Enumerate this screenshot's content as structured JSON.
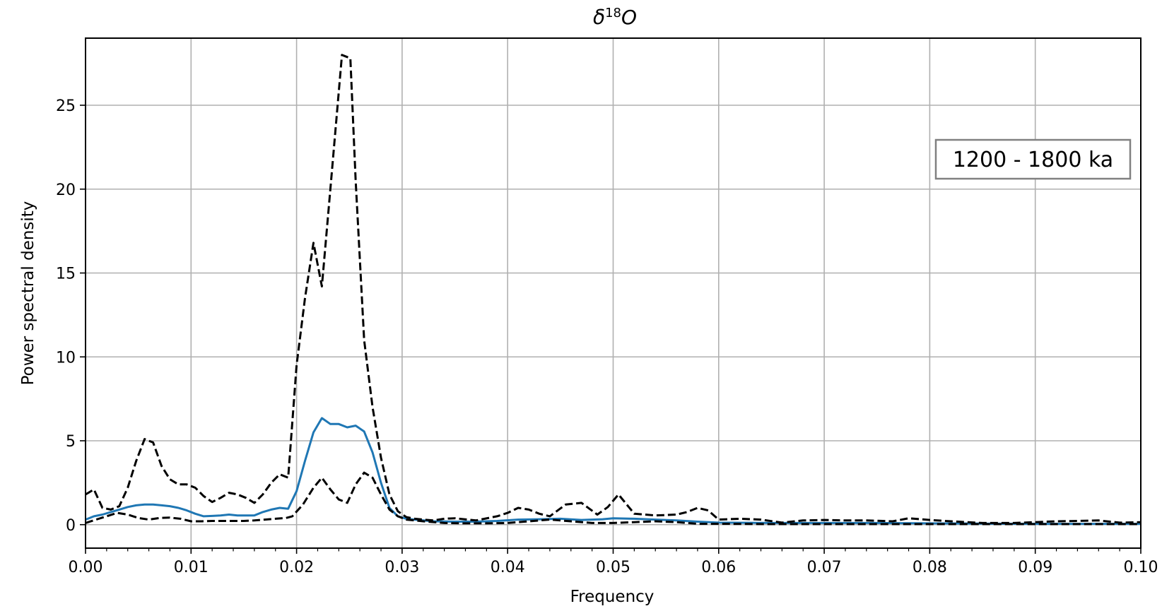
{
  "chart_data": {
    "type": "line",
    "title": {
      "base": "δ",
      "sup": "18",
      "tail": "O"
    },
    "xlabel": "Frequency",
    "ylabel": "Power spectral density",
    "xlim": [
      0,
      0.1
    ],
    "ylim": [
      -1.4,
      29.0
    ],
    "xticks": [
      0.0,
      0.01,
      0.02,
      0.03,
      0.04,
      0.05,
      0.06,
      0.07,
      0.08,
      0.09,
      0.1
    ],
    "xtick_labels": [
      "0.00",
      "0.01",
      "0.02",
      "0.03",
      "0.04",
      "0.05",
      "0.06",
      "0.07",
      "0.08",
      "0.09",
      "0.10"
    ],
    "yticks": [
      0,
      5,
      10,
      15,
      20,
      25
    ],
    "ytick_labels": [
      "0",
      "5",
      "10",
      "15",
      "20",
      "25"
    ],
    "grid": true,
    "annotation": "1200 - 1800 ka",
    "annotation_position": "right",
    "series": [
      {
        "style": "solid",
        "color": "#1f77b4",
        "x": [
          0,
          0.0008,
          0.0016,
          0.0024,
          0.0032,
          0.004,
          0.0048,
          0.0056,
          0.0064,
          0.0072,
          0.008,
          0.0088,
          0.0096,
          0.0104,
          0.0112,
          0.012,
          0.0128,
          0.0136,
          0.0144,
          0.0152,
          0.016,
          0.0168,
          0.0176,
          0.0184,
          0.0192,
          0.02,
          0.0208,
          0.0216,
          0.0224,
          0.0232,
          0.024,
          0.0248,
          0.0256,
          0.0264,
          0.0272,
          0.028,
          0.0288,
          0.0296,
          0.0304,
          0.0312,
          0.032,
          0.033,
          0.035,
          0.037,
          0.039,
          0.041,
          0.043,
          0.045,
          0.047,
          0.049,
          0.05,
          0.052,
          0.054,
          0.056,
          0.058,
          0.06,
          0.065,
          0.07,
          0.075,
          0.08,
          0.085,
          0.09,
          0.095,
          0.1
        ],
        "y": [
          0.3,
          0.5,
          0.6,
          0.75,
          0.9,
          1.05,
          1.15,
          1.2,
          1.2,
          1.15,
          1.1,
          1.0,
          0.85,
          0.65,
          0.5,
          0.52,
          0.55,
          0.6,
          0.55,
          0.55,
          0.55,
          0.75,
          0.9,
          1.0,
          0.95,
          2.0,
          3.8,
          5.5,
          6.35,
          6.0,
          6.0,
          5.8,
          5.9,
          5.55,
          4.3,
          2.5,
          1.0,
          0.5,
          0.35,
          0.3,
          0.25,
          0.2,
          0.18,
          0.18,
          0.22,
          0.3,
          0.32,
          0.35,
          0.28,
          0.32,
          0.38,
          0.35,
          0.3,
          0.25,
          0.18,
          0.12,
          0.1,
          0.1,
          0.1,
          0.08,
          0.06,
          0.05,
          0.05,
          0.05
        ]
      },
      {
        "style": "dashed",
        "color": "#000000",
        "x": [
          0,
          0.0008,
          0.0016,
          0.0024,
          0.0032,
          0.004,
          0.0048,
          0.0056,
          0.0064,
          0.0072,
          0.008,
          0.0088,
          0.0096,
          0.0104,
          0.0112,
          0.012,
          0.0128,
          0.0136,
          0.0144,
          0.0152,
          0.016,
          0.0168,
          0.0176,
          0.0184,
          0.0192,
          0.02,
          0.0208,
          0.0216,
          0.0224,
          0.0232,
          0.0243,
          0.0251,
          0.0256,
          0.0264,
          0.0272,
          0.028,
          0.0288,
          0.0296,
          0.0304,
          0.0312,
          0.032,
          0.033,
          0.034,
          0.035,
          0.037,
          0.039,
          0.04,
          0.041,
          0.042,
          0.043,
          0.044,
          0.0455,
          0.047,
          0.0485,
          0.0495,
          0.0505,
          0.052,
          0.054,
          0.056,
          0.057,
          0.058,
          0.059,
          0.06,
          0.062,
          0.064,
          0.066,
          0.068,
          0.07,
          0.072,
          0.074,
          0.0765,
          0.078,
          0.08,
          0.082,
          0.085,
          0.088,
          0.09,
          0.092,
          0.094,
          0.096,
          0.098,
          0.1
        ],
        "y": [
          1.8,
          2.1,
          1.0,
          0.9,
          1.1,
          2.2,
          3.8,
          5.1,
          4.9,
          3.5,
          2.7,
          2.4,
          2.4,
          2.2,
          1.7,
          1.35,
          1.6,
          1.9,
          1.8,
          1.6,
          1.3,
          1.8,
          2.5,
          3.0,
          2.8,
          9.5,
          13.5,
          16.8,
          14.2,
          20.0,
          28.0,
          27.8,
          20.5,
          11.0,
          7.0,
          4.0,
          1.8,
          0.8,
          0.45,
          0.35,
          0.3,
          0.25,
          0.35,
          0.38,
          0.25,
          0.5,
          0.7,
          1.0,
          0.9,
          0.65,
          0.5,
          1.2,
          1.3,
          0.6,
          1.05,
          1.8,
          0.65,
          0.55,
          0.6,
          0.75,
          1.0,
          0.85,
          0.3,
          0.35,
          0.3,
          0.12,
          0.25,
          0.28,
          0.25,
          0.25,
          0.2,
          0.38,
          0.28,
          0.2,
          0.1,
          0.1,
          0.15,
          0.2,
          0.22,
          0.25,
          0.12,
          0.15
        ]
      },
      {
        "style": "dashed",
        "color": "#000000",
        "x": [
          0,
          0.001,
          0.002,
          0.003,
          0.004,
          0.005,
          0.006,
          0.007,
          0.008,
          0.009,
          0.01,
          0.011,
          0.012,
          0.013,
          0.014,
          0.015,
          0.016,
          0.017,
          0.018,
          0.019,
          0.0196,
          0.0206,
          0.0216,
          0.0224,
          0.0232,
          0.024,
          0.0248,
          0.0256,
          0.0264,
          0.0272,
          0.028,
          0.0288,
          0.0296,
          0.0304,
          0.0312,
          0.032,
          0.034,
          0.036,
          0.038,
          0.04,
          0.042,
          0.044,
          0.046,
          0.048,
          0.05,
          0.052,
          0.054,
          0.056,
          0.058,
          0.06,
          0.065,
          0.07,
          0.075,
          0.08,
          0.085,
          0.09,
          0.095,
          0.1
        ],
        "y": [
          0.1,
          0.3,
          0.5,
          0.7,
          0.6,
          0.4,
          0.3,
          0.4,
          0.42,
          0.35,
          0.2,
          0.2,
          0.22,
          0.22,
          0.22,
          0.22,
          0.25,
          0.3,
          0.35,
          0.4,
          0.5,
          1.2,
          2.2,
          2.8,
          2.1,
          1.5,
          1.3,
          2.4,
          3.1,
          2.8,
          1.8,
          0.9,
          0.5,
          0.3,
          0.25,
          0.2,
          0.1,
          0.08,
          0.08,
          0.1,
          0.2,
          0.3,
          0.2,
          0.1,
          0.1,
          0.15,
          0.2,
          0.15,
          0.05,
          0.05,
          0.03,
          0.03,
          0.03,
          0.03,
          0.03,
          0.03,
          0.03,
          0.03
        ]
      }
    ]
  }
}
